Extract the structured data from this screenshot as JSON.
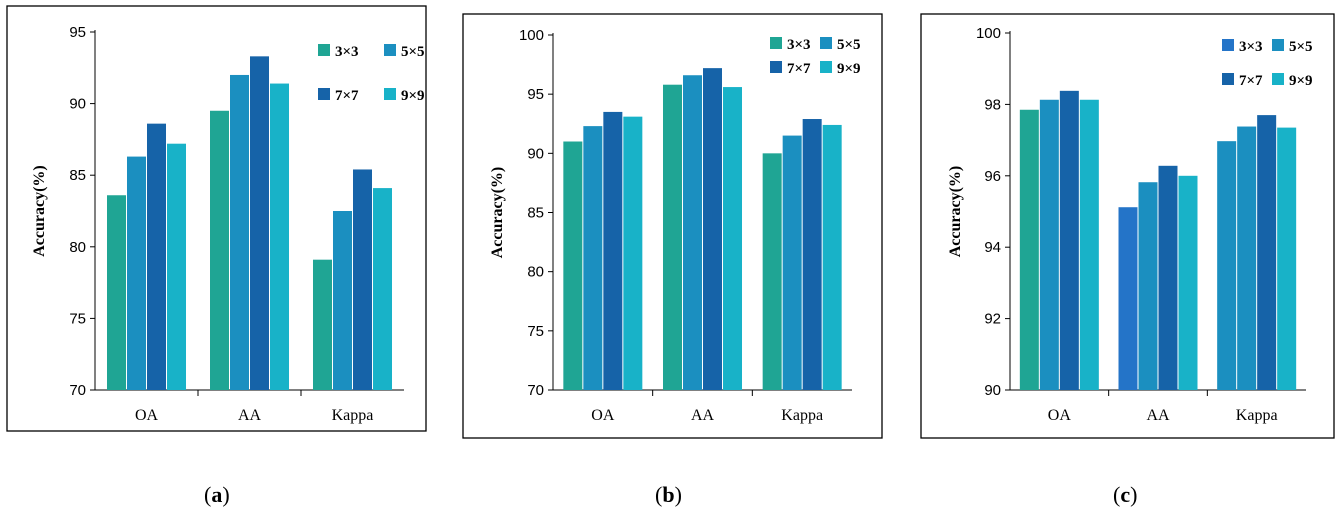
{
  "chart_data": [
    {
      "type": "bar",
      "panel": "a",
      "categories": [
        "OA",
        "AA",
        "Kappa"
      ],
      "ylabel": "Accuracy(%)",
      "ylim": [
        70,
        95
      ],
      "yticks": [
        70,
        75,
        80,
        85,
        90,
        95
      ],
      "grid": false,
      "legend_position": "top-right",
      "series": [
        {
          "name": "3×3",
          "values": [
            83.6,
            89.5,
            79.1
          ],
          "colors": [
            "#1fa594",
            "#1fa594",
            "#1fa594"
          ]
        },
        {
          "name": "5×5",
          "values": [
            86.3,
            92.0,
            82.5
          ],
          "colors": [
            "#1b8fc0",
            "#1b8fc0",
            "#1b8fc0"
          ]
        },
        {
          "name": "7×7",
          "values": [
            88.6,
            93.3,
            85.4
          ],
          "colors": [
            "#1663a8",
            "#1663a8",
            "#1663a8"
          ]
        },
        {
          "name": "9×9",
          "values": [
            87.2,
            91.4,
            84.1
          ],
          "colors": [
            "#18b2c8",
            "#18b2c8",
            "#18b2c8"
          ]
        }
      ]
    },
    {
      "type": "bar",
      "panel": "b",
      "categories": [
        "OA",
        "AA",
        "Kappa"
      ],
      "ylabel": "Accuracy(%)",
      "ylim": [
        70,
        100
      ],
      "yticks": [
        70,
        75,
        80,
        85,
        90,
        95,
        100
      ],
      "grid": false,
      "legend_position": "top-right",
      "series": [
        {
          "name": "3×3",
          "values": [
            91.0,
            95.8,
            90.0
          ],
          "colors": [
            "#1fa594",
            "#1fa594",
            "#1fa594"
          ]
        },
        {
          "name": "5×5",
          "values": [
            92.3,
            96.6,
            91.5
          ],
          "colors": [
            "#1b8fc0",
            "#1b8fc0",
            "#1b8fc0"
          ]
        },
        {
          "name": "7×7",
          "values": [
            93.5,
            97.2,
            92.9
          ],
          "colors": [
            "#1663a8",
            "#1663a8",
            "#1663a8"
          ]
        },
        {
          "name": "9×9",
          "values": [
            93.1,
            95.6,
            92.4
          ],
          "colors": [
            "#18b2c8",
            "#18b2c8",
            "#18b2c8"
          ]
        }
      ]
    },
    {
      "type": "bar",
      "panel": "c",
      "categories": [
        "OA",
        "AA",
        "Kappa"
      ],
      "ylabel": "Accuracy(%)",
      "ylim": [
        90,
        100
      ],
      "yticks": [
        90,
        92,
        94,
        96,
        98,
        100
      ],
      "grid": false,
      "legend_position": "top-right",
      "series": [
        {
          "name": "3×3",
          "values": [
            97.85,
            95.12,
            96.97
          ],
          "colors": [
            "#1fa594",
            "#2474c8",
            "#1b8fc0"
          ]
        },
        {
          "name": "5×5",
          "values": [
            98.13,
            95.82,
            97.38
          ],
          "colors": [
            "#1b8fc0",
            "#1b8fc0",
            "#1b8fc0"
          ]
        },
        {
          "name": "7×7",
          "values": [
            98.38,
            96.28,
            97.7
          ],
          "colors": [
            "#1663a8",
            "#1663a8",
            "#1663a8"
          ]
        },
        {
          "name": "9×9",
          "values": [
            98.13,
            96.0,
            97.35
          ],
          "colors": [
            "#18b2c8",
            "#18b2c8",
            "#18b2c8"
          ]
        }
      ],
      "legend_swatches": [
        "#2474c8",
        "#1b8fc0",
        "#1663a8",
        "#18b2c8"
      ]
    }
  ],
  "panel_labels": {
    "a_open": "(",
    "a_letter": "a",
    "a_close": ")",
    "b_open": "(",
    "b_letter": "b",
    "b_close": ")",
    "c_open": "(",
    "c_letter": "c",
    "c_close": ")"
  }
}
